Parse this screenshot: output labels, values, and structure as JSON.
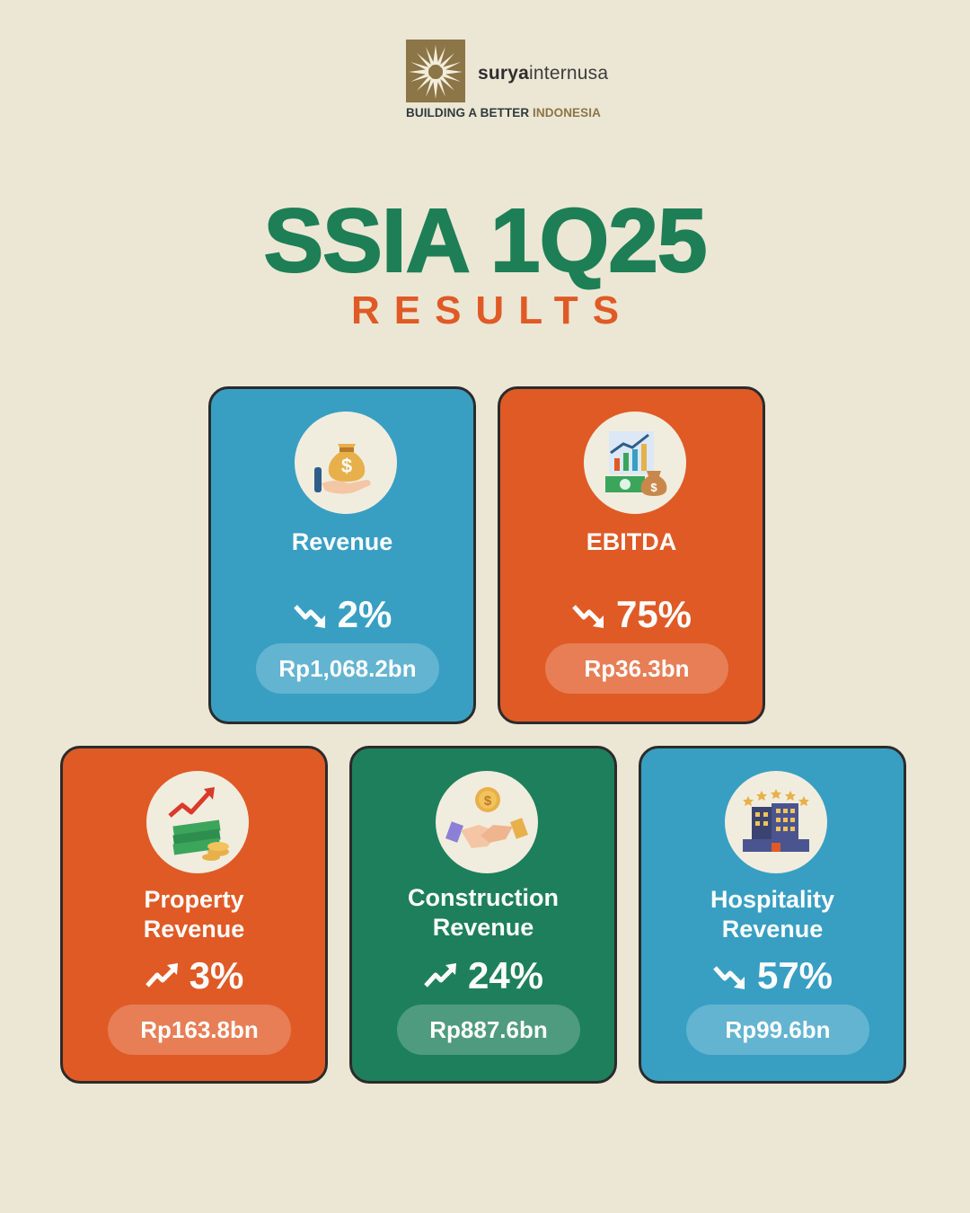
{
  "brand": {
    "name_bold": "surya",
    "name_rest": "internusa",
    "tagline_main": "BUILDING A BETTER ",
    "tagline_accent": "INDONESIA"
  },
  "title": "SSIA 1Q25",
  "subtitle": "RESULTS",
  "colors": {
    "background": "#ECE7D5",
    "title_green": "#1E7F57",
    "accent_orange": "#E05A26",
    "card_blue": "#389FC3",
    "card_green": "#1E7F5C",
    "brand_gold": "#8C7546"
  },
  "cards": [
    {
      "label_line1": "Revenue",
      "label_line2": "",
      "direction": "down",
      "change": "2%",
      "value": "Rp1,068.2bn",
      "icon": "money-bag-hand-icon",
      "color": "blue"
    },
    {
      "label_line1": "EBITDA",
      "label_line2": "",
      "direction": "down",
      "change": "75%",
      "value": "Rp36.3bn",
      "icon": "growth-chart-money-icon",
      "color": "orange"
    },
    {
      "label_line1": "Property",
      "label_line2": "Revenue",
      "direction": "up",
      "change": "3%",
      "value": "Rp163.8bn",
      "icon": "cash-stack-up-arrow-icon",
      "color": "orange"
    },
    {
      "label_line1": "Construction",
      "label_line2": "Revenue",
      "direction": "up",
      "change": "24%",
      "value": "Rp887.6bn",
      "icon": "handshake-coin-icon",
      "color": "green"
    },
    {
      "label_line1": "Hospitality",
      "label_line2": "Revenue",
      "direction": "down",
      "change": "57%",
      "value": "Rp99.6bn",
      "icon": "hotel-stars-icon",
      "color": "blue"
    }
  ]
}
